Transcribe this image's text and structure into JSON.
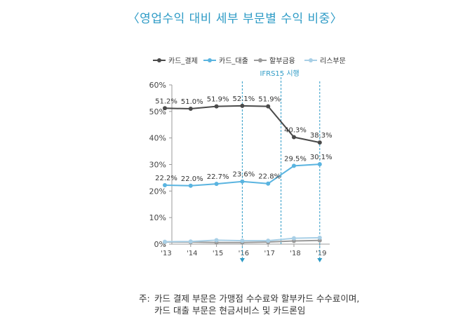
{
  "page": {
    "title": "〈영업수익 대비 세부 부문별 수익 비중〉",
    "note_prefix": "주:",
    "note_text": "카드 결제 부문은 가맹점 수수료와 할부카드 수수료이며, 카드 대출 부문은 현금서비스 및 카드론임"
  },
  "chart_data": {
    "type": "line",
    "title": "〈영업수익 대비 세부 부문별 수익 비중〉",
    "x": [
      "'13",
      "'14",
      "'15",
      "'16",
      "'17",
      "'18",
      "'19"
    ],
    "ylim": [
      0,
      60
    ],
    "yticks": [
      "0%",
      "10%",
      "20%",
      "30%",
      "40%",
      "50%",
      "60%"
    ],
    "ytick_values": [
      0,
      10,
      20,
      30,
      40,
      50,
      60
    ],
    "legend_position": "top",
    "grid": false,
    "series": [
      {
        "name": "카드_결제",
        "color": "#4a4a4a",
        "values": [
          51.2,
          51.0,
          51.9,
          52.1,
          51.9,
          40.3,
          38.3
        ],
        "labels": [
          "51.2%",
          "51.0%",
          "51.9%",
          "52.1%",
          "51.9%",
          "40.3%",
          "38.3%"
        ]
      },
      {
        "name": "카드_대출",
        "color": "#5ab4e0",
        "values": [
          22.2,
          22.0,
          22.7,
          23.6,
          22.8,
          29.5,
          30.1
        ],
        "labels": [
          "22.2%",
          "22.0%",
          "22.7%",
          "23.6%",
          "22.8%",
          "29.5%",
          "30.1%"
        ]
      },
      {
        "name": "할부금융",
        "color": "#9a9a9a",
        "values": [
          0.8,
          0.8,
          0.6,
          0.6,
          0.8,
          1.2,
          1.4
        ],
        "labels": []
      },
      {
        "name": "리스부문",
        "color": "#a8cfe6",
        "values": [
          0.9,
          1.0,
          1.5,
          1.3,
          1.3,
          2.2,
          2.4
        ],
        "labels": []
      }
    ],
    "markers": [
      {
        "x_index": 3,
        "label": "",
        "arrow": true
      },
      {
        "x_index": 4.5,
        "label": "IFRS15 시행",
        "arrow": false
      },
      {
        "x_index": 6,
        "label": "",
        "arrow": true
      }
    ]
  }
}
